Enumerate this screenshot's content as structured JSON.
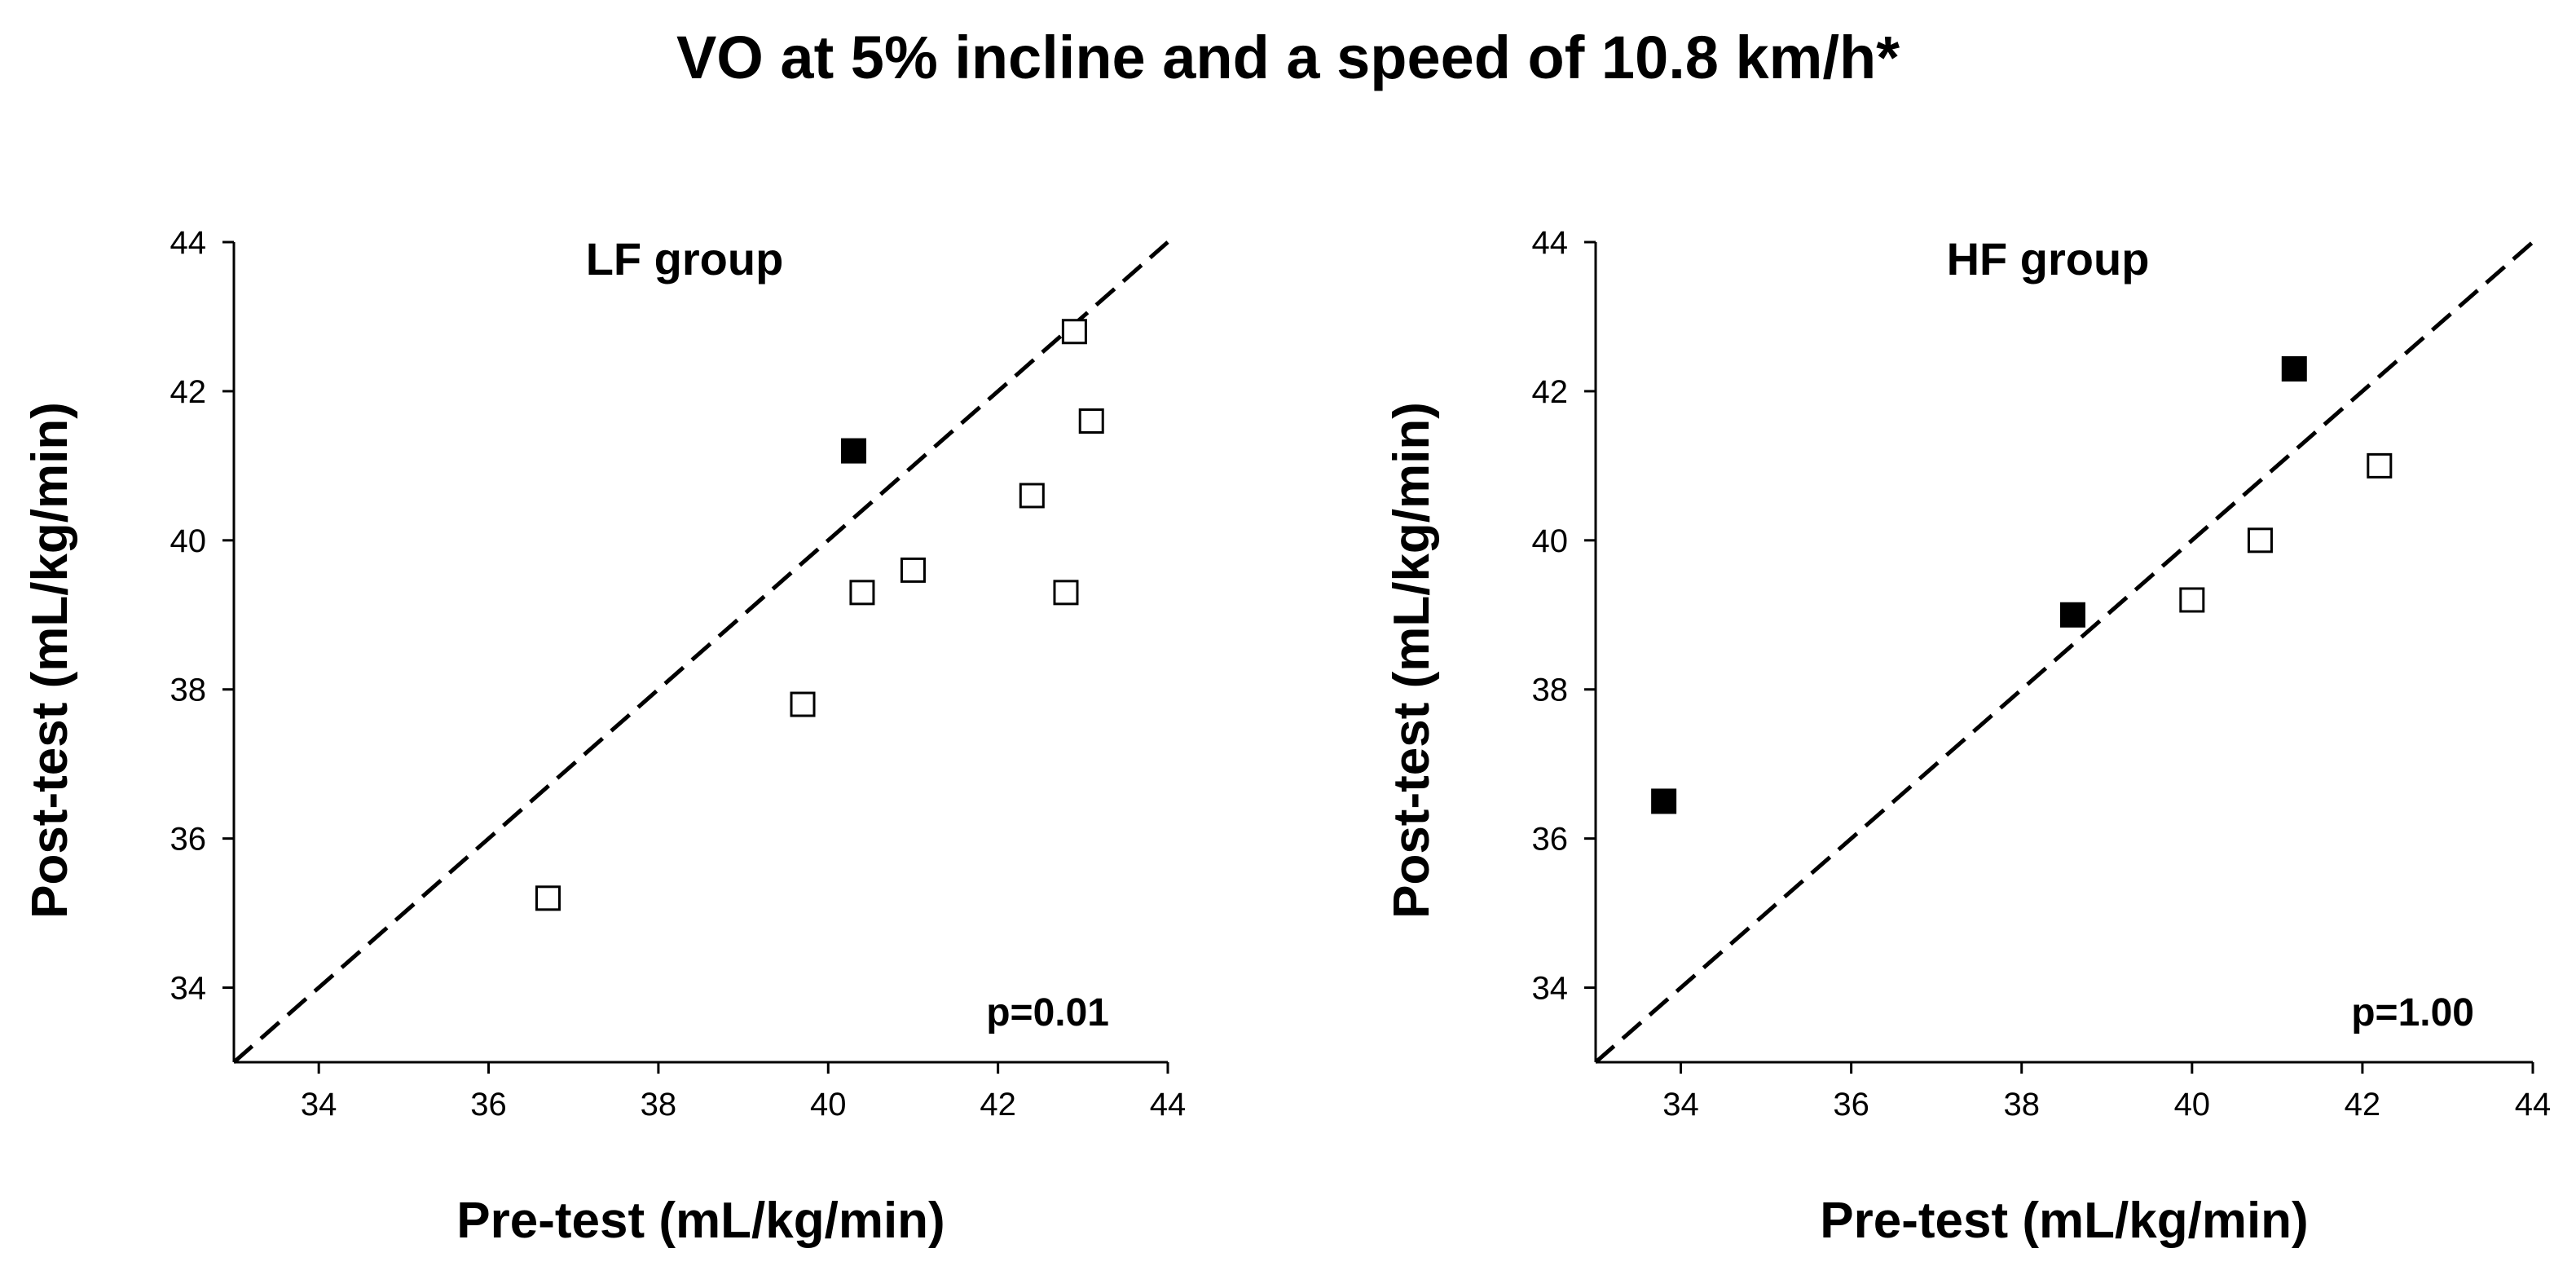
{
  "title": "VO at 5% incline and a speed of 10.8 km/h*",
  "chart_data": [
    {
      "type": "scatter",
      "panel_title": "LF group",
      "annotation": "p=0.01",
      "xlabel": "Pre-test (mL/kg/min)",
      "ylabel": "Post-test (mL/kg/min)",
      "xlim": [
        33,
        44
      ],
      "ylim": [
        33,
        44
      ],
      "xticks": [
        34,
        36,
        38,
        40,
        42,
        44
      ],
      "yticks": [
        34,
        36,
        38,
        40,
        42,
        44
      ],
      "identity_line": true,
      "series": [
        {
          "name": "open",
          "fill": "#ffffff",
          "stroke": "#000000",
          "points": [
            [
              36.7,
              35.2
            ],
            [
              39.7,
              37.8
            ],
            [
              40.4,
              39.3
            ],
            [
              41.0,
              39.6
            ],
            [
              42.4,
              40.6
            ],
            [
              42.8,
              39.3
            ],
            [
              42.9,
              42.8
            ],
            [
              43.1,
              41.6
            ]
          ]
        },
        {
          "name": "filled",
          "fill": "#000000",
          "stroke": "#000000",
          "points": [
            [
              40.3,
              41.2
            ]
          ]
        }
      ]
    },
    {
      "type": "scatter",
      "panel_title": "HF group",
      "annotation": "p=1.00",
      "xlabel": "Pre-test (mL/kg/min)",
      "ylabel": "Post-test (mL/kg/min)",
      "xlim": [
        33,
        44
      ],
      "ylim": [
        33,
        44
      ],
      "xticks": [
        34,
        36,
        38,
        40,
        42,
        44
      ],
      "yticks": [
        34,
        36,
        38,
        40,
        42,
        44
      ],
      "identity_line": true,
      "series": [
        {
          "name": "open",
          "fill": "#ffffff",
          "stroke": "#000000",
          "points": [
            [
              40.0,
              39.2
            ],
            [
              40.8,
              40.0
            ],
            [
              42.2,
              41.0
            ]
          ]
        },
        {
          "name": "filled",
          "fill": "#000000",
          "stroke": "#000000",
          "points": [
            [
              33.8,
              36.5
            ],
            [
              38.6,
              39.0
            ],
            [
              41.2,
              42.3
            ]
          ]
        }
      ]
    }
  ]
}
